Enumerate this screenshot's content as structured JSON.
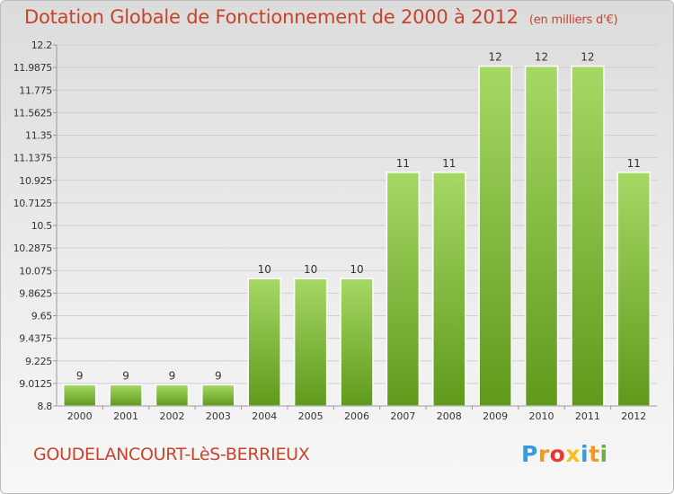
{
  "header": {
    "title": "Dotation Globale de Fonctionnement de 2000 à 2012",
    "subtitle": "(en milliers d'€)"
  },
  "footer": {
    "city": "GOUDELANCOURT-LèS-BERRIEUX",
    "logo_letters": [
      "P",
      "r",
      "o",
      "x",
      "i",
      "t",
      "i"
    ],
    "logo_colors": [
      "#3a9ad9",
      "#f29a1d",
      "#e8382f",
      "#f4c21c",
      "#3a9ad9",
      "#f29a1d",
      "#6cb33e"
    ]
  },
  "colors": {
    "bar_light": "#a6d865",
    "bar_dark": "#5f9a1c",
    "title": "#c8432a",
    "text": "#333333",
    "grid": "#cfcfcf"
  },
  "chart_data": {
    "type": "bar",
    "title": "Dotation Globale de Fonctionnement de 2000 à 2012",
    "subtitle": "(en milliers d'€)",
    "categories": [
      "2000",
      "2001",
      "2002",
      "2003",
      "2004",
      "2005",
      "2006",
      "2007",
      "2008",
      "2009",
      "2010",
      "2011",
      "2012"
    ],
    "values": [
      9,
      9,
      9,
      9,
      10,
      10,
      10,
      11,
      11,
      12,
      12,
      12,
      11
    ],
    "data_labels": [
      "9",
      "9",
      "9",
      "9",
      "10",
      "10",
      "10",
      "11",
      "11",
      "12",
      "12",
      "12",
      "11"
    ],
    "yticks": [
      "12.2",
      "11.9875",
      "11.775",
      "11.5625",
      "11.35",
      "11.1375",
      "10.925",
      "10.7125",
      "10.5",
      "10.2875",
      "10.075",
      "9.8625",
      "9.65",
      "9.4375",
      "9.225",
      "9.0125",
      "8.8"
    ],
    "ylim": [
      8.8,
      12.2
    ],
    "grid": true,
    "xlabel": "",
    "ylabel": ""
  }
}
